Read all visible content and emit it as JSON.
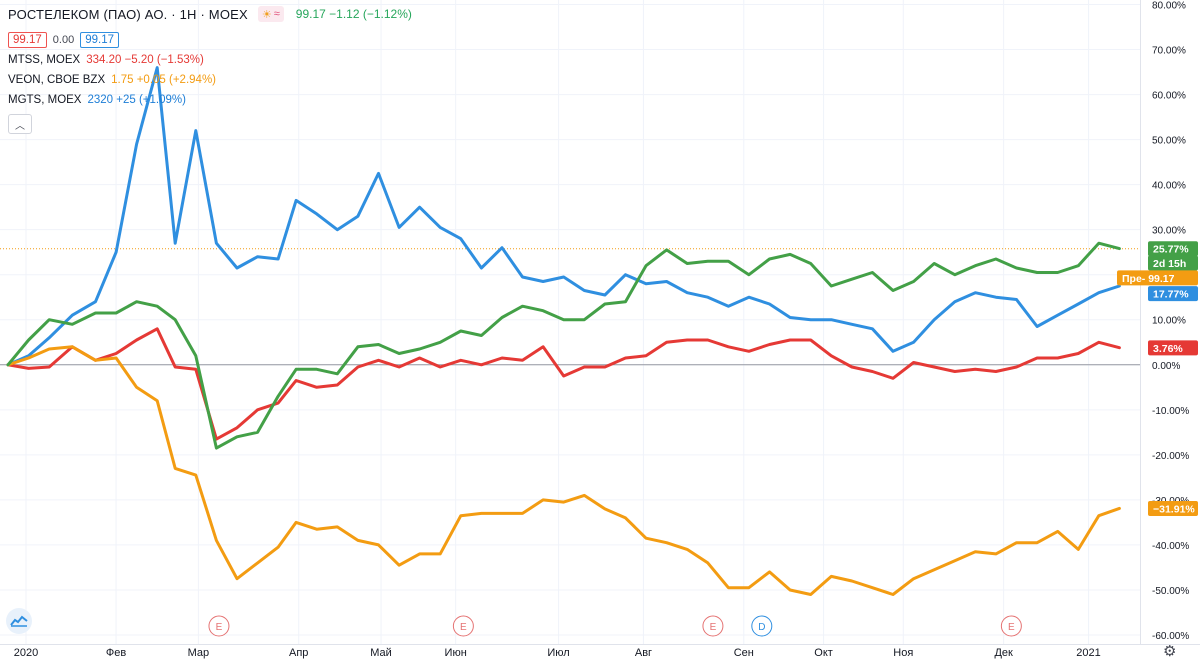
{
  "header": {
    "title": "РОСТЕЛЕКОМ (ПАО) АО. · 1H · MOEX",
    "values": "99.17  −1.12 (−1.12%)",
    "badge_a": "99.17",
    "badge_mid": "0.00",
    "badge_b": "99.17"
  },
  "compare": [
    {
      "symbol": "MTSS, MOEX",
      "values": "334.20 −5.20 (−1.53%)"
    },
    {
      "symbol": "VEON, CBOE BZX",
      "values": "1.75 +0.05 (+2.94%)"
    },
    {
      "symbol": "MGTS, MOEX",
      "values": "2320 +25 (+1.09%)"
    }
  ],
  "colors": {
    "green": "#43a047",
    "red": "#e53935",
    "orange": "#f39c12",
    "blue": "#2f8fe0"
  },
  "icons": {
    "collapse": "chevron-up-icon",
    "settings": "gear-icon",
    "logo": "tradingview-logo-icon"
  },
  "chart_data": {
    "type": "line",
    "xlim": [
      0,
      44
    ],
    "ylim": [
      -62,
      81
    ],
    "y_ticks": [
      -60,
      -50,
      -40,
      -30,
      -20,
      -10,
      0,
      10,
      20,
      30,
      40,
      50,
      60,
      70,
      80
    ],
    "y_tick_format": "%",
    "x_ticks": [
      {
        "x": 0.7,
        "label": "2020"
      },
      {
        "x": 4.2,
        "label": "Фев"
      },
      {
        "x": 7.4,
        "label": "Мар"
      },
      {
        "x": 11.3,
        "label": "Апр"
      },
      {
        "x": 14.5,
        "label": "Май"
      },
      {
        "x": 17.4,
        "label": "Июн"
      },
      {
        "x": 21.4,
        "label": "Июл"
      },
      {
        "x": 24.7,
        "label": "Авг"
      },
      {
        "x": 28.6,
        "label": "Сен"
      },
      {
        "x": 31.7,
        "label": "Окт"
      },
      {
        "x": 34.8,
        "label": "Ноя"
      },
      {
        "x": 38.7,
        "label": "Дек"
      },
      {
        "x": 42.0,
        "label": "2021"
      }
    ],
    "series": [
      {
        "name": "MGTS",
        "color": "#2f8fe0",
        "values": [
          [
            0,
            0
          ],
          [
            0.8,
            2
          ],
          [
            1.6,
            6
          ],
          [
            2.5,
            11
          ],
          [
            3.4,
            14
          ],
          [
            4.2,
            25
          ],
          [
            5,
            49
          ],
          [
            5.8,
            66
          ],
          [
            6.5,
            27
          ],
          [
            7.3,
            52
          ],
          [
            8.1,
            27
          ],
          [
            8.9,
            21.5
          ],
          [
            9.7,
            24
          ],
          [
            10.5,
            23.5
          ],
          [
            11.2,
            36.5
          ],
          [
            12,
            33.5
          ],
          [
            12.8,
            30
          ],
          [
            13.6,
            33
          ],
          [
            14.4,
            42.5
          ],
          [
            15.2,
            30.5
          ],
          [
            16,
            35
          ],
          [
            16.8,
            30.5
          ],
          [
            17.6,
            28
          ],
          [
            18.4,
            21.5
          ],
          [
            19.2,
            26
          ],
          [
            20,
            19.5
          ],
          [
            20.8,
            18.5
          ],
          [
            21.6,
            19.5
          ],
          [
            22.4,
            16.5
          ],
          [
            23.2,
            15.5
          ],
          [
            24,
            20
          ],
          [
            24.8,
            18
          ],
          [
            25.6,
            18.5
          ],
          [
            26.4,
            16
          ],
          [
            27.2,
            15
          ],
          [
            28,
            13
          ],
          [
            28.8,
            15
          ],
          [
            29.6,
            13.5
          ],
          [
            30.4,
            10.5
          ],
          [
            31.2,
            10
          ],
          [
            32,
            10
          ],
          [
            32.8,
            9
          ],
          [
            33.6,
            8
          ],
          [
            34.4,
            3
          ],
          [
            35.2,
            5
          ],
          [
            36,
            10
          ],
          [
            36.8,
            14
          ],
          [
            37.6,
            16
          ],
          [
            38.4,
            15
          ],
          [
            39.2,
            14.5
          ],
          [
            40,
            8.5
          ],
          [
            40.8,
            11
          ],
          [
            41.6,
            13.5
          ],
          [
            42.4,
            16
          ],
          [
            43.2,
            17.5
          ]
        ]
      },
      {
        "name": "MTSS",
        "color": "#e53935",
        "values": [
          [
            0,
            0
          ],
          [
            0.8,
            -0.8
          ],
          [
            1.6,
            -0.5
          ],
          [
            2.5,
            4
          ],
          [
            3.4,
            1
          ],
          [
            4.2,
            2.5
          ],
          [
            5,
            5.5
          ],
          [
            5.8,
            8
          ],
          [
            6.5,
            -0.5
          ],
          [
            7.3,
            -1
          ],
          [
            8.1,
            -16.5
          ],
          [
            8.9,
            -14
          ],
          [
            9.7,
            -10
          ],
          [
            10.5,
            -8.5
          ],
          [
            11.2,
            -3.5
          ],
          [
            12,
            -5
          ],
          [
            12.8,
            -4.5
          ],
          [
            13.6,
            -0.5
          ],
          [
            14.4,
            1
          ],
          [
            15.2,
            -0.5
          ],
          [
            16,
            1.5
          ],
          [
            16.8,
            -0.5
          ],
          [
            17.6,
            1
          ],
          [
            18.4,
            0
          ],
          [
            19.2,
            1.5
          ],
          [
            20,
            1
          ],
          [
            20.8,
            4
          ],
          [
            21.6,
            -2.5
          ],
          [
            22.4,
            -0.5
          ],
          [
            23.2,
            -0.5
          ],
          [
            24,
            1.5
          ],
          [
            24.8,
            2
          ],
          [
            25.6,
            5
          ],
          [
            26.4,
            5.5
          ],
          [
            27.2,
            5.5
          ],
          [
            28,
            4
          ],
          [
            28.8,
            3
          ],
          [
            29.6,
            4.5
          ],
          [
            30.4,
            5.5
          ],
          [
            31.2,
            5.5
          ],
          [
            32,
            2
          ],
          [
            32.8,
            -0.5
          ],
          [
            33.6,
            -1.5
          ],
          [
            34.4,
            -3
          ],
          [
            35.2,
            0.5
          ],
          [
            36,
            -0.5
          ],
          [
            36.8,
            -1.5
          ],
          [
            37.6,
            -1
          ],
          [
            38.4,
            -1.5
          ],
          [
            39.2,
            -0.5
          ],
          [
            40,
            1.5
          ],
          [
            40.8,
            1.5
          ],
          [
            41.6,
            2.5
          ],
          [
            42.4,
            5
          ],
          [
            43.2,
            3.8
          ]
        ]
      },
      {
        "name": "VEON",
        "color": "#f39c12",
        "values": [
          [
            0,
            0
          ],
          [
            0.8,
            1.5
          ],
          [
            1.6,
            3.5
          ],
          [
            2.5,
            4
          ],
          [
            3.4,
            1
          ],
          [
            4.2,
            1.5
          ],
          [
            5,
            -5
          ],
          [
            5.8,
            -8
          ],
          [
            6.5,
            -23
          ],
          [
            7.3,
            -24.5
          ],
          [
            8.1,
            -39
          ],
          [
            8.9,
            -47.5
          ],
          [
            9.7,
            -44
          ],
          [
            10.5,
            -40.5
          ],
          [
            11.2,
            -35
          ],
          [
            12,
            -36.5
          ],
          [
            12.8,
            -36
          ],
          [
            13.6,
            -39
          ],
          [
            14.4,
            -40
          ],
          [
            15.2,
            -44.5
          ],
          [
            16,
            -42
          ],
          [
            16.8,
            -42
          ],
          [
            17.6,
            -33.5
          ],
          [
            18.4,
            -33
          ],
          [
            19.2,
            -33
          ],
          [
            20,
            -33
          ],
          [
            20.8,
            -30
          ],
          [
            21.6,
            -30.5
          ],
          [
            22.4,
            -29
          ],
          [
            23.2,
            -32
          ],
          [
            24,
            -34
          ],
          [
            24.8,
            -38.5
          ],
          [
            25.6,
            -39.5
          ],
          [
            26.4,
            -41
          ],
          [
            27.2,
            -44
          ],
          [
            28,
            -49.5
          ],
          [
            28.8,
            -49.5
          ],
          [
            29.6,
            -46
          ],
          [
            30.4,
            -50
          ],
          [
            31.2,
            -51
          ],
          [
            32,
            -47
          ],
          [
            32.8,
            -48
          ],
          [
            33.6,
            -49.5
          ],
          [
            34.4,
            -51
          ],
          [
            35.2,
            -47.5
          ],
          [
            36,
            -45.5
          ],
          [
            36.8,
            -43.5
          ],
          [
            37.6,
            -41.5
          ],
          [
            38.4,
            -42
          ],
          [
            39.2,
            -39.5
          ],
          [
            40,
            -39.5
          ],
          [
            40.8,
            -37
          ],
          [
            41.6,
            -41
          ],
          [
            42.4,
            -33.5
          ],
          [
            43.2,
            -31.9
          ]
        ]
      },
      {
        "name": "РОСТЕЛЕКОМ",
        "color": "#43a047",
        "values": [
          [
            0,
            0
          ],
          [
            0.8,
            5.5
          ],
          [
            1.6,
            10
          ],
          [
            2.5,
            9
          ],
          [
            3.4,
            11.5
          ],
          [
            4.2,
            11.5
          ],
          [
            5,
            14
          ],
          [
            5.8,
            13
          ],
          [
            6.5,
            10
          ],
          [
            7.3,
            2
          ],
          [
            8.1,
            -18.5
          ],
          [
            8.9,
            -16
          ],
          [
            9.7,
            -15
          ],
          [
            10.5,
            -7
          ],
          [
            11.2,
            -1
          ],
          [
            12,
            -1
          ],
          [
            12.8,
            -2
          ],
          [
            13.6,
            4
          ],
          [
            14.4,
            4.5
          ],
          [
            15.2,
            2.5
          ],
          [
            16,
            3.5
          ],
          [
            16.8,
            5
          ],
          [
            17.6,
            7.5
          ],
          [
            18.4,
            6.5
          ],
          [
            19.2,
            10.5
          ],
          [
            20,
            13
          ],
          [
            20.8,
            12
          ],
          [
            21.6,
            10
          ],
          [
            22.4,
            10
          ],
          [
            23.2,
            13.5
          ],
          [
            24,
            14
          ],
          [
            24.8,
            22
          ],
          [
            25.6,
            25.5
          ],
          [
            26.4,
            22.5
          ],
          [
            27.2,
            23
          ],
          [
            28,
            23
          ],
          [
            28.8,
            20
          ],
          [
            29.6,
            23.5
          ],
          [
            30.4,
            24.5
          ],
          [
            31.2,
            22.5
          ],
          [
            32,
            17.5
          ],
          [
            32.8,
            19
          ],
          [
            33.6,
            20.5
          ],
          [
            34.4,
            16.5
          ],
          [
            35.2,
            18.5
          ],
          [
            36,
            22.5
          ],
          [
            36.8,
            20
          ],
          [
            37.6,
            22
          ],
          [
            38.4,
            23.5
          ],
          [
            39.2,
            21.5
          ],
          [
            40,
            20.5
          ],
          [
            40.8,
            20.5
          ],
          [
            41.6,
            22
          ],
          [
            42.4,
            27
          ],
          [
            43.2,
            25.8
          ]
        ]
      }
    ],
    "reference_line": {
      "y": 25.77,
      "color": "#f39c12",
      "style": "dotted"
    },
    "baseline": 0,
    "price_labels": [
      {
        "y": 25.77,
        "text": "25.77%",
        "color": "#43a047"
      },
      {
        "y": 22.6,
        "text": "2d 15h",
        "color": "#43a047"
      },
      {
        "y": 19.3,
        "text": "Пре- 99.17",
        "color": "#f39c12"
      },
      {
        "y": 15.8,
        "text": "17.77%",
        "color": "#2f8fe0"
      },
      {
        "y": 3.76,
        "text": "3.76%",
        "color": "#e53935"
      },
      {
        "y": -31.91,
        "text": "−31.91%",
        "color": "#f39c12"
      }
    ],
    "events": [
      {
        "x": 8.2,
        "label": "E",
        "color": "#e57373"
      },
      {
        "x": 17.7,
        "label": "E",
        "color": "#e57373"
      },
      {
        "x": 27.4,
        "label": "E",
        "color": "#e57373"
      },
      {
        "x": 29.3,
        "label": "D",
        "color": "#2f8fe0"
      },
      {
        "x": 39.0,
        "label": "E",
        "color": "#e57373"
      }
    ]
  }
}
